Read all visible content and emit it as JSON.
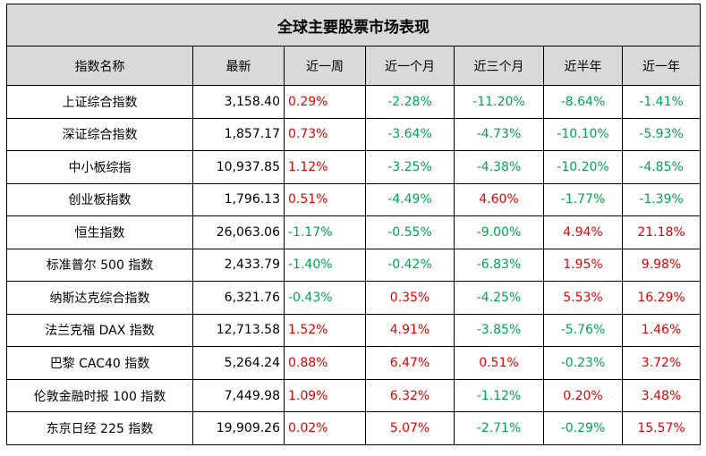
{
  "title": "全球主要股票市场表现",
  "headers": [
    "指数名称",
    "最新",
    "近一周",
    "近一个月",
    "近三个月",
    "近半年",
    "近一年"
  ],
  "colors": {
    "positive": "#e60000",
    "negative": "#00a550",
    "header_bg": "#d9d9d9"
  },
  "rows": [
    {
      "name": "上证综合指数",
      "latest": "3,158.40",
      "changes": [
        "0.29%",
        "-2.28%",
        "-11.20%",
        "-8.64%",
        "-1.41%"
      ]
    },
    {
      "name": "深证综合指数",
      "latest": "1,857.17",
      "changes": [
        "0.73%",
        "-3.64%",
        "-4.73%",
        "-10.10%",
        "-5.93%"
      ]
    },
    {
      "name": "中小板综指",
      "latest": "10,937.85",
      "changes": [
        "1.12%",
        "-3.25%",
        "-4.38%",
        "-10.20%",
        "-4.85%"
      ]
    },
    {
      "name": "创业板指数",
      "latest": "1,796.13",
      "changes": [
        "0.51%",
        "-4.49%",
        "4.60%",
        "-1.77%",
        "-1.39%"
      ]
    },
    {
      "name": "恒生指数",
      "latest": "26,063.06",
      "changes": [
        "-1.17%",
        "-0.55%",
        "-9.00%",
        "4.94%",
        "21.18%"
      ]
    },
    {
      "name": "标准普尔 500 指数",
      "latest": "2,433.79",
      "changes": [
        "-1.40%",
        "-0.42%",
        "-6.83%",
        "1.95%",
        "9.98%"
      ]
    },
    {
      "name": "纳斯达克综合指数",
      "latest": "6,321.76",
      "changes": [
        "-0.43%",
        "0.35%",
        "-4.25%",
        "5.53%",
        "16.29%"
      ]
    },
    {
      "name": "法兰克福 DAX 指数",
      "latest": "12,713.58",
      "changes": [
        "1.52%",
        "4.91%",
        "-3.85%",
        "-5.76%",
        "1.46%"
      ]
    },
    {
      "name": "巴黎 CAC40 指数",
      "latest": "5,264.24",
      "changes": [
        "0.88%",
        "6.47%",
        "0.51%",
        "-0.23%",
        "3.72%"
      ]
    },
    {
      "name": "伦敦金融时报 100 指数",
      "latest": "7,449.98",
      "changes": [
        "1.09%",
        "6.32%",
        "-1.12%",
        "0.20%",
        "3.48%"
      ]
    },
    {
      "name": "东京日经 225 指数",
      "latest": "19,909.26",
      "changes": [
        "0.02%",
        "5.07%",
        "-2.71%",
        "-0.29%",
        "15.57%"
      ]
    }
  ]
}
